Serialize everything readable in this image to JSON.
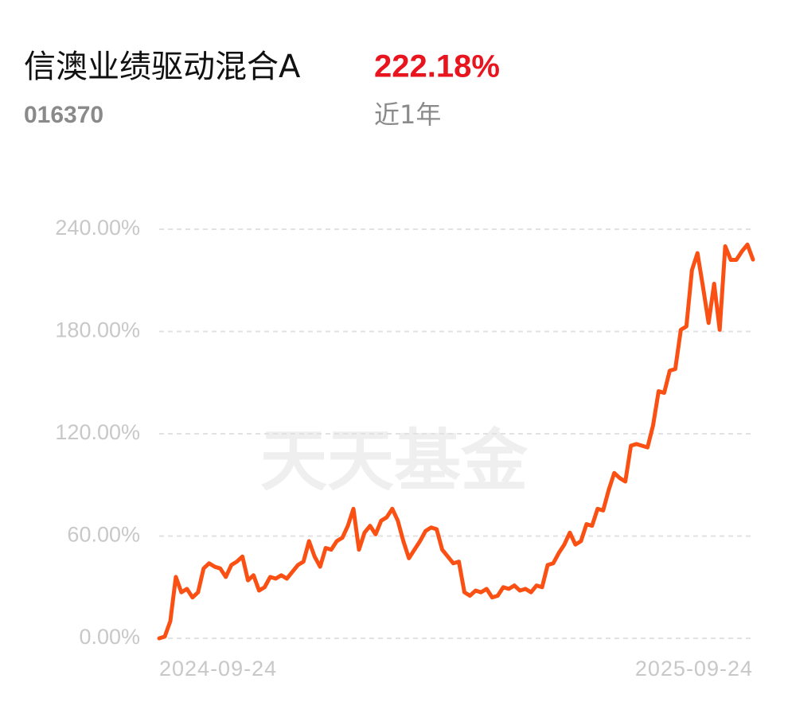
{
  "header": {
    "title": "信澳业绩驱动混合A",
    "code": "016370",
    "return": "222.18%",
    "period": "近1年"
  },
  "watermark": "天天基金",
  "chart_data": {
    "type": "line",
    "categories": [
      "2024-09-24",
      null,
      null,
      null,
      null,
      null,
      null,
      null,
      null,
      null,
      null,
      null,
      null,
      null,
      null,
      null,
      null,
      null,
      null,
      null,
      null,
      null,
      null,
      null,
      null,
      null,
      null,
      null,
      null,
      null,
      null,
      null,
      null,
      null,
      null,
      null,
      null,
      null,
      null,
      null,
      null,
      null,
      null,
      null,
      null,
      null,
      null,
      null,
      null,
      null,
      null,
      null,
      null,
      null,
      null,
      null,
      null,
      null,
      null,
      null,
      null,
      null,
      null,
      null,
      null,
      null,
      null,
      null,
      null,
      null,
      null,
      null,
      null,
      null,
      null,
      null,
      null,
      null,
      null,
      null,
      null,
      null,
      null,
      null,
      null,
      null,
      null,
      null,
      null,
      null,
      null,
      null,
      null,
      null,
      null,
      null,
      null,
      null,
      null,
      null,
      null,
      null,
      null,
      null,
      null,
      null,
      null,
      "2025-09-24"
    ],
    "color": "#fa5014",
    "values": [
      0,
      1,
      10,
      36,
      27,
      29,
      24,
      27,
      41,
      44,
      42,
      41,
      36,
      43,
      45,
      48,
      34,
      37,
      28,
      30,
      36,
      35,
      37,
      35,
      39,
      43,
      45,
      57,
      48,
      42,
      53,
      52,
      57,
      59,
      66,
      76,
      52,
      62,
      66,
      61,
      69,
      71,
      76,
      69,
      57,
      47,
      52,
      57,
      63,
      65,
      64,
      52,
      48,
      44,
      45,
      27,
      25,
      28,
      27,
      29,
      24,
      25,
      30,
      29,
      31,
      28,
      29,
      27,
      31,
      30,
      43,
      44,
      50,
      55,
      62,
      55,
      57,
      67,
      66,
      76,
      75,
      87,
      97,
      94,
      92,
      113,
      114,
      113,
      112,
      125,
      145,
      144,
      157,
      158,
      181,
      183,
      216,
      226,
      206,
      185,
      208,
      181,
      230,
      222,
      222,
      227,
      231,
      222.18
    ],
    "ylim": [
      0,
      240
    ],
    "yticks": [
      {
        "value": 0,
        "label": "0.00%"
      },
      {
        "value": 60,
        "label": "60.00%"
      },
      {
        "value": 120,
        "label": "120.00%"
      },
      {
        "value": 180,
        "label": "180.00%"
      },
      {
        "value": 240,
        "label": "240.00%"
      }
    ],
    "grid": true
  }
}
